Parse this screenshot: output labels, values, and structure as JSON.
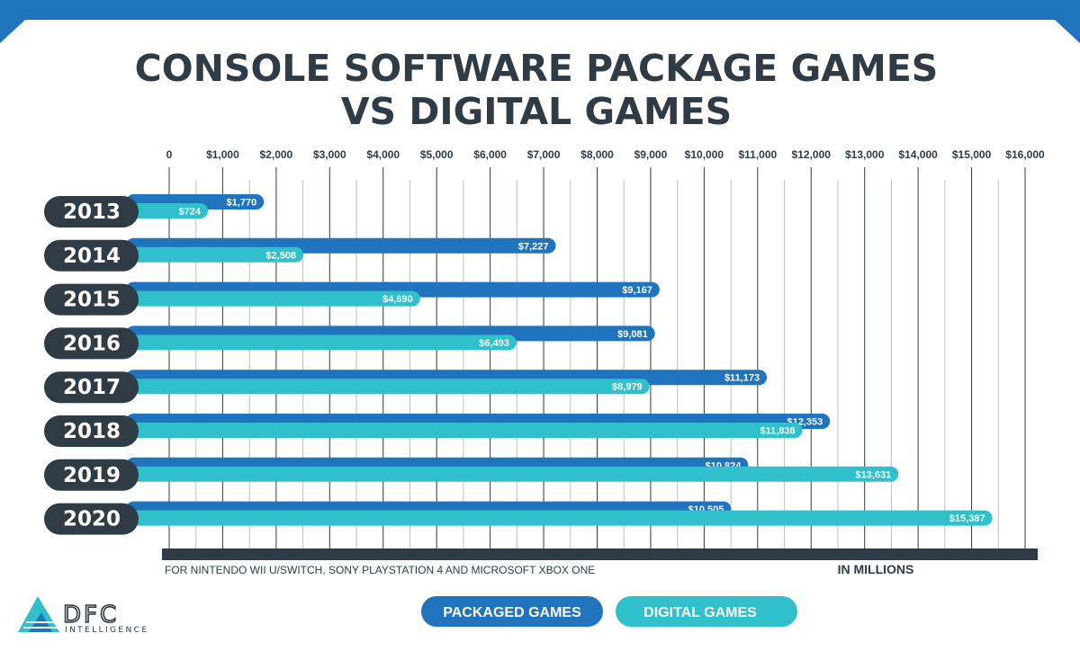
{
  "chart_data": {
    "type": "bar",
    "orientation": "horizontal",
    "title_lines": [
      "CONSOLE SOFTWARE PACKAGE GAMES",
      "VS DIGITAL GAMES"
    ],
    "categories": [
      "2013",
      "2014",
      "2015",
      "2016",
      "2017",
      "2018",
      "2019",
      "2020"
    ],
    "series": [
      {
        "name": "PACKAGED GAMES",
        "color": "#1f74bd",
        "values": [
          1770,
          7227,
          9167,
          9081,
          11173,
          12353,
          10824,
          10505
        ],
        "labels": [
          "$1,770",
          "$7,227",
          "$9,167",
          "$9,081",
          "$11,173",
          "$12,353",
          "$10,824",
          "$10,505"
        ]
      },
      {
        "name": "DIGITAL GAMES",
        "color": "#2fc0cb",
        "values": [
          724,
          2508,
          4690,
          6493,
          8979,
          11838,
          13631,
          15387
        ],
        "labels": [
          "$724",
          "$2,508",
          "$4,690",
          "$6,493",
          "$8,979",
          "$11,838",
          "$13,631",
          "$15,387"
        ]
      }
    ],
    "xlim": [
      0,
      16000
    ],
    "tick_values": [
      0,
      1000,
      2000,
      3000,
      4000,
      5000,
      6000,
      7000,
      8000,
      9000,
      10000,
      11000,
      12000,
      13000,
      14000,
      15000,
      16000
    ],
    "tick_labels": [
      "0",
      "$1,000",
      "$2,000",
      "$3,000",
      "$4,000",
      "$5,000",
      "$6,000",
      "$7,000",
      "$8,000",
      "$9,000",
      "$10,000",
      "$11,000",
      "$12,000",
      "$13,000",
      "$14,000",
      "$15,000",
      "$16,000"
    ],
    "grid": true,
    "axis_position": "top",
    "footnote": "FOR NINTENDO WII U/SWITCH, SONY PLAYSTATION 4 AND MICROSOFT XBOX ONE",
    "unit_label": "IN MILLIONS",
    "legend_position": "bottom-center"
  },
  "brand": {
    "logo_text": "DFC",
    "logo_subtext": "INTELLIGENCE"
  },
  "colors": {
    "header_band": "#1f74bd",
    "text_dark": "#2f3b45",
    "packaged": "#1f74bd",
    "digital": "#2fc0cb"
  }
}
